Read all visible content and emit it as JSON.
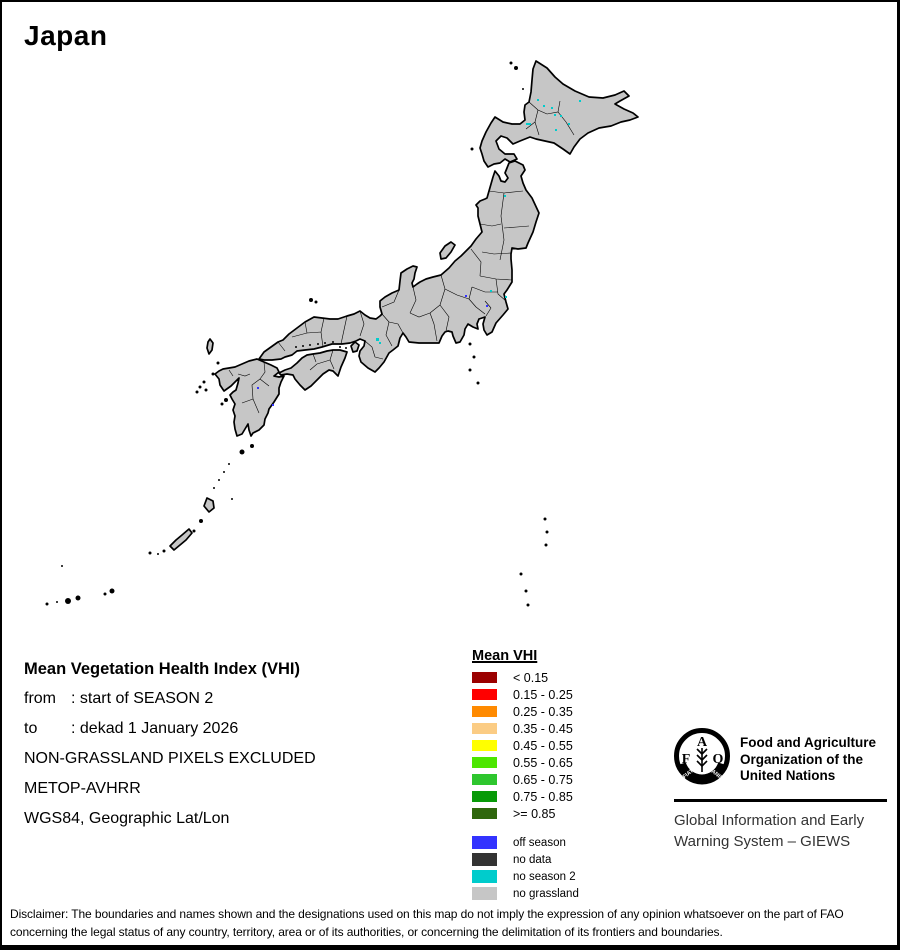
{
  "title": "Japan",
  "map": {
    "country": "Japan",
    "fill_color": "#C6C6C6",
    "fill_meaning": "no grassland",
    "dot_colors": {
      "no_season_2": "#00CCCC",
      "off_season": "#3333FF"
    }
  },
  "info": {
    "heading": "Mean Vegetation Health Index (VHI)",
    "rows": [
      {
        "label": "from",
        "value": ": start of SEASON 2"
      },
      {
        "label": "to",
        "value": ": dekad 1 January 2026"
      }
    ],
    "lines": [
      "NON-GRASSLAND PIXELS EXCLUDED",
      "METOP-AVHRR",
      "WGS84, Geographic Lat/Lon"
    ]
  },
  "legend": {
    "title": "Mean VHI",
    "classes": [
      {
        "label": "< 0.15",
        "color": "#9B0000"
      },
      {
        "label": "0.15 - 0.25",
        "color": "#FF0000"
      },
      {
        "label": "0.25 - 0.35",
        "color": "#FF8A00"
      },
      {
        "label": "0.35 - 0.45",
        "color": "#FBCC84"
      },
      {
        "label": "0.45 - 0.55",
        "color": "#FFFF00"
      },
      {
        "label": "0.55 - 0.65",
        "color": "#4CE600"
      },
      {
        "label": "0.65 - 0.75",
        "color": "#2EC62E"
      },
      {
        "label": "0.75 - 0.85",
        "color": "#089A08"
      },
      {
        "label": ">= 0.85",
        "color": "#2F670D"
      }
    ],
    "extra": [
      {
        "label": "off season",
        "color": "#3333FF"
      },
      {
        "label": "no data",
        "color": "#333333"
      },
      {
        "label": "no season 2",
        "color": "#00CCCC"
      },
      {
        "label": "no grassland",
        "color": "#C6C6C6"
      }
    ]
  },
  "footer": {
    "org_lines": [
      "Food and Agriculture",
      "Organization of the",
      "United Nations"
    ],
    "giews_lines": [
      "Global Information and Early",
      "Warning System – GIEWS"
    ],
    "logo_letters": {
      "f": "F",
      "a": "A",
      "o": "O"
    },
    "logo_motto": {
      "left": "FIAT",
      "right": "PANIS"
    }
  },
  "disclaimer": {
    "line1": "Disclaimer: The boundaries and names shown and the designations used on this map do not imply the expression of any opinion whatsoever on the part of FAO",
    "line2": "concerning the legal status of any country, territory, area or of its authorities, or concerning the delimitation of its frontiers and boundaries."
  }
}
